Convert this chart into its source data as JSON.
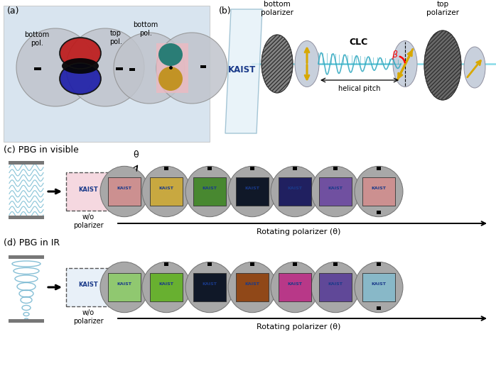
{
  "panel_a_label": "(a)",
  "panel_b_label": "(b)",
  "panel_c_label": "(c) PBG in visible",
  "panel_d_label": "(d) PBG in IR",
  "panel_a_bg": "#d8e4ef",
  "rotating_label": "Rotating polarizer (θ)",
  "wo_polarizer": "w/o\npolarizer",
  "theta_label": "θ",
  "helical_pitch_label": "helical pitch",
  "CLC_label": "CLC",
  "bottom_polarizer_label": "bottom\npolarizer",
  "top_polarizer_label": "top\npolarizer",
  "bottom_pol_label1": "bottom\npol.",
  "top_pol_label1": "top\npol.",
  "bottom_pol_label2": "bottom\npol.",
  "KAIST_color": "#1a3a8a",
  "visible_sq_colors": [
    "#cc9090",
    "#c8a840",
    "#488830",
    "#101828",
    "#202060",
    "#7050a0",
    "#cc9090"
  ],
  "ir_sq_colors": [
    "#90c870",
    "#68b030",
    "#101828",
    "#904818",
    "#b83888",
    "#604898",
    "#88b8c8"
  ],
  "circle_bg_color": "#a8a8a8",
  "panel_a_circle_color": "#c0c4cc"
}
